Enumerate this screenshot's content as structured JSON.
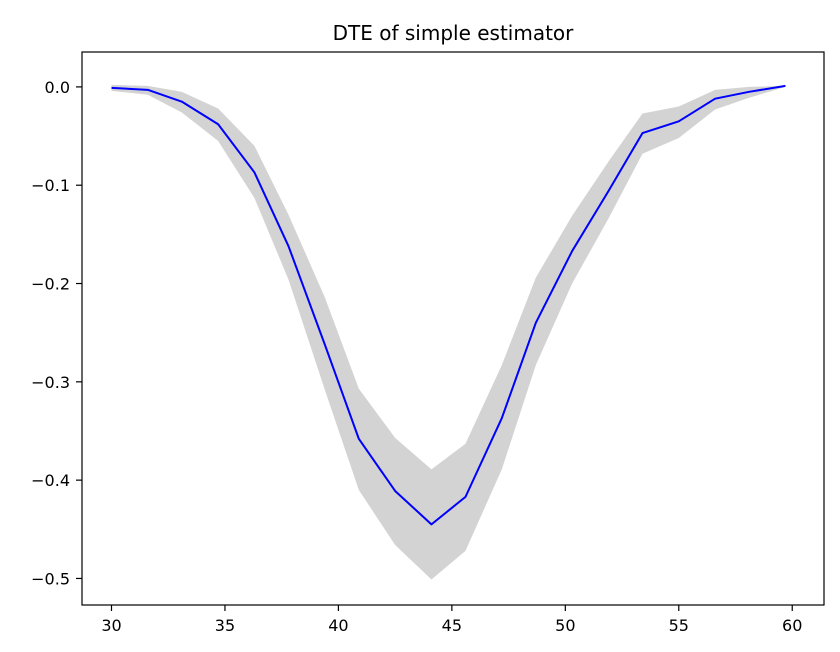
{
  "chart_data": {
    "type": "line",
    "title": "DTE of simple estimator",
    "xlabel": "",
    "ylabel": "",
    "xlim": [
      28.7,
      61.4
    ],
    "ylim": [
      -0.527,
      0.0355
    ],
    "grid": false,
    "legend": "none",
    "x_ticks": [
      30,
      35,
      40,
      45,
      50,
      55,
      60
    ],
    "x_tick_labels": [
      "30",
      "35",
      "40",
      "45",
      "50",
      "55",
      "60"
    ],
    "y_ticks": [
      0.0,
      -0.1,
      -0.2,
      -0.3,
      -0.4,
      -0.5
    ],
    "y_tick_labels": [
      "0.0",
      "−0.1",
      "−0.2",
      "−0.3",
      "−0.4",
      "−0.5"
    ],
    "series": [
      {
        "x": [
          30.0,
          31.6,
          33.1,
          34.7,
          36.3,
          37.8,
          39.4,
          40.9,
          42.5,
          44.1,
          45.6,
          47.2,
          48.7,
          50.3,
          51.9,
          53.4,
          55.0,
          56.6,
          58.1,
          59.7
        ],
        "y": [
          -0.001,
          -0.003,
          -0.015,
          -0.038,
          -0.087,
          -0.162,
          -0.262,
          -0.358,
          -0.411,
          -0.445,
          -0.417,
          -0.337,
          -0.24,
          -0.167,
          -0.106,
          -0.047,
          -0.035,
          -0.012,
          -0.005,
          0.001
        ],
        "lower": [
          -0.004,
          -0.008,
          -0.026,
          -0.055,
          -0.113,
          -0.196,
          -0.308,
          -0.41,
          -0.466,
          -0.501,
          -0.472,
          -0.389,
          -0.283,
          -0.2,
          -0.134,
          -0.068,
          -0.052,
          -0.023,
          -0.011,
          0.0
        ],
        "upper": [
          0.002,
          0.001,
          -0.005,
          -0.022,
          -0.06,
          -0.13,
          -0.214,
          -0.307,
          -0.357,
          -0.389,
          -0.363,
          -0.283,
          -0.194,
          -0.131,
          -0.076,
          -0.027,
          -0.02,
          -0.003,
          0.0,
          0.001
        ]
      }
    ],
    "colors": {
      "line": "#0000ff",
      "band": "#d3d3d3",
      "axes": "#000000"
    }
  }
}
